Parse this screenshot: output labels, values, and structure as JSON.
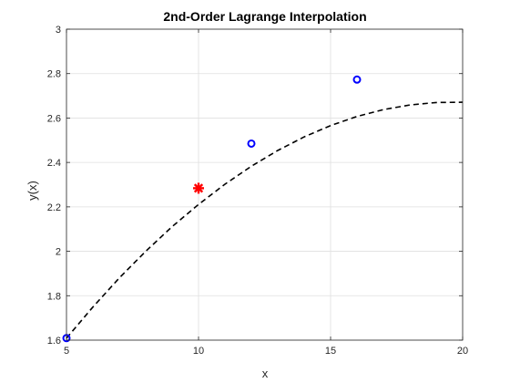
{
  "chart_data": {
    "type": "line",
    "title": "2nd-Order Lagrange Interpolation",
    "xlabel": "x",
    "ylabel": "y(x)",
    "xlim": [
      5,
      20
    ],
    "ylim": [
      1.6,
      3.0
    ],
    "xticks": [
      5,
      10,
      15,
      20
    ],
    "xtick_labels": [
      "5",
      "10",
      "15",
      "20"
    ],
    "yticks": [
      1.6,
      1.8,
      2.0,
      2.2,
      2.4,
      2.6,
      2.8,
      3.0
    ],
    "ytick_labels": [
      "1.6",
      "1.8",
      "2",
      "2.2",
      "2.4",
      "2.6",
      "2.8",
      "3"
    ],
    "grid": true,
    "legend": "none",
    "series": [
      {
        "style": "dashed-line",
        "color": "#000000",
        "x": [
          5,
          6,
          7,
          8,
          9,
          10,
          11,
          12,
          13,
          14,
          15,
          16,
          17,
          18,
          19,
          20
        ],
        "y": [
          1.609,
          1.749,
          1.88,
          2.0,
          2.111,
          2.211,
          2.302,
          2.383,
          2.454,
          2.515,
          2.566,
          2.607,
          2.638,
          2.659,
          2.67,
          2.671
        ]
      },
      {
        "style": "circle-markers",
        "color": "#0000ff",
        "x": [
          5,
          12,
          16
        ],
        "y": [
          1.609,
          2.485,
          2.773
        ]
      },
      {
        "style": "asterisk-marker",
        "color": "#ff0000",
        "x": [
          10
        ],
        "y": [
          2.284
        ]
      }
    ]
  }
}
